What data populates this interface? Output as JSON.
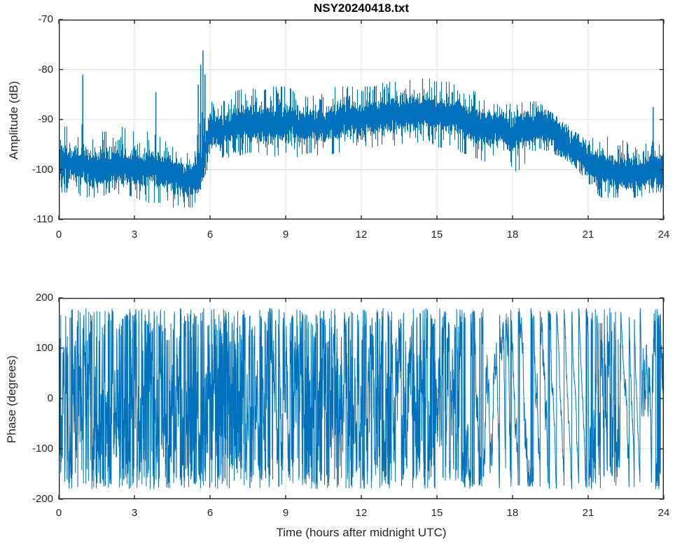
{
  "figure": {
    "background": "#ffffff",
    "axis_color": "#262626",
    "grid_color": "#e0e0e0",
    "line_color": "#0072BD"
  },
  "chart_data": [
    {
      "type": "line",
      "title": "NSY20240418.txt",
      "xlabel": "",
      "ylabel": "Amplitude (dB)",
      "xlim": [
        0,
        24
      ],
      "ylim": [
        -110,
        -70
      ],
      "xticks": [
        0,
        3,
        6,
        9,
        12,
        15,
        18,
        21,
        24
      ],
      "yticks": [
        -110,
        -100,
        -90,
        -80,
        -70
      ],
      "grid": true,
      "legend": null,
      "series": [
        {
          "name": "amplitude",
          "color": "#0072BD",
          "representation": "noise-band-envelope",
          "description": "Dense noisy amplitude trace; envelope points are [hour, band-center dB, band-low dB, band-high dB]",
          "envelope": [
            [
              0.0,
              -98.5,
              -104,
              -92
            ],
            [
              0.5,
              -99,
              -104,
              -92
            ],
            [
              1.0,
              -99,
              -105,
              -92
            ],
            [
              1.5,
              -100,
              -105,
              -93
            ],
            [
              2.0,
              -99.5,
              -105,
              -93
            ],
            [
              2.5,
              -99,
              -104,
              -92
            ],
            [
              3.0,
              -100,
              -105,
              -93
            ],
            [
              3.5,
              -100,
              -106,
              -93
            ],
            [
              4.0,
              -100,
              -106,
              -94
            ],
            [
              4.5,
              -101,
              -107,
              -96
            ],
            [
              5.0,
              -102,
              -107,
              -97
            ],
            [
              5.3,
              -102,
              -107,
              -98
            ],
            [
              5.6,
              -101,
              -106,
              -95
            ],
            [
              5.9,
              -95,
              -99,
              -90
            ],
            [
              6.0,
              -92,
              -96,
              -87
            ],
            [
              6.5,
              -92.5,
              -97,
              -87
            ],
            [
              7.0,
              -91.5,
              -97,
              -85
            ],
            [
              7.5,
              -90.5,
              -96,
              -84
            ],
            [
              8.0,
              -91,
              -96,
              -85
            ],
            [
              8.5,
              -91,
              -97,
              -84
            ],
            [
              9.0,
              -90.5,
              -96,
              -84
            ],
            [
              9.5,
              -91,
              -97,
              -85
            ],
            [
              10.0,
              -91,
              -96,
              -85
            ],
            [
              10.5,
              -91,
              -97,
              -85
            ],
            [
              11.0,
              -90.5,
              -96,
              -84
            ],
            [
              11.5,
              -90,
              -96,
              -84
            ],
            [
              12.0,
              -90,
              -95,
              -84
            ],
            [
              12.5,
              -89.5,
              -95,
              -84
            ],
            [
              13.0,
              -89,
              -94,
              -83
            ],
            [
              13.5,
              -89,
              -95,
              -83
            ],
            [
              14.0,
              -88.5,
              -94,
              -82
            ],
            [
              14.5,
              -88.5,
              -94,
              -82
            ],
            [
              15.0,
              -89,
              -95,
              -83
            ],
            [
              15.5,
              -89,
              -95,
              -83
            ],
            [
              16.0,
              -90,
              -96,
              -84
            ],
            [
              16.5,
              -91,
              -97,
              -85
            ],
            [
              17.0,
              -92,
              -98,
              -86
            ],
            [
              17.5,
              -91.5,
              -97,
              -85
            ],
            [
              18.0,
              -93.5,
              -100,
              -88
            ],
            [
              18.5,
              -92,
              -99,
              -87
            ],
            [
              19.0,
              -91,
              -95,
              -87
            ],
            [
              19.5,
              -92,
              -96,
              -89
            ],
            [
              20.0,
              -94,
              -97,
              -91
            ],
            [
              20.5,
              -96,
              -99,
              -93
            ],
            [
              21.0,
              -98.5,
              -102,
              -95
            ],
            [
              21.5,
              -100,
              -105,
              -93
            ],
            [
              22.0,
              -100.5,
              -105,
              -94
            ],
            [
              22.5,
              -101,
              -105,
              -95
            ],
            [
              23.0,
              -101,
              -105,
              -96
            ],
            [
              23.5,
              -100,
              -104,
              -95
            ],
            [
              24.0,
              -100,
              -104,
              -96
            ]
          ],
          "spikes": [
            [
              0.95,
              -81
            ],
            [
              3.85,
              -84.5
            ],
            [
              5.53,
              -83
            ],
            [
              5.63,
              -79
            ],
            [
              5.72,
              -76.2
            ],
            [
              5.8,
              -81
            ],
            [
              23.58,
              -87.5
            ]
          ]
        }
      ]
    },
    {
      "type": "line",
      "title": "",
      "xlabel": "Time (hours after midnight UTC)",
      "ylabel": "Phase (degrees)",
      "xlim": [
        0,
        24
      ],
      "ylim": [
        -200,
        200
      ],
      "xticks": [
        0,
        3,
        6,
        9,
        12,
        15,
        18,
        21,
        24
      ],
      "yticks": [
        -200,
        -100,
        0,
        100,
        200
      ],
      "grid": true,
      "legend": null,
      "series": [
        {
          "name": "phase",
          "color": "#0072BD",
          "representation": "wrapped-phase-random-walk",
          "data_range": [
            -180,
            180
          ],
          "description": "Phase wraps at +/-180 deg; segments give [start hour, end hour, walk step deg/sample, drift deg/sample]",
          "segments": [
            [
              0.0,
              6.2,
              60,
              0
            ],
            [
              6.2,
              7.35,
              130,
              0
            ],
            [
              7.35,
              9.3,
              45,
              0
            ],
            [
              9.3,
              10.9,
              70,
              0
            ],
            [
              10.9,
              12.4,
              60,
              0
            ],
            [
              12.4,
              14.1,
              50,
              0
            ],
            [
              14.1,
              16.0,
              55,
              0
            ],
            [
              16.0,
              18.0,
              22,
              -3.2
            ],
            [
              18.0,
              19.6,
              16,
              -4.5
            ],
            [
              19.6,
              21.0,
              7,
              -6.2
            ],
            [
              21.0,
              22.3,
              45,
              0
            ],
            [
              22.3,
              23.1,
              10,
              -6.5
            ],
            [
              23.1,
              24.0,
              28,
              0
            ]
          ]
        }
      ]
    }
  ]
}
